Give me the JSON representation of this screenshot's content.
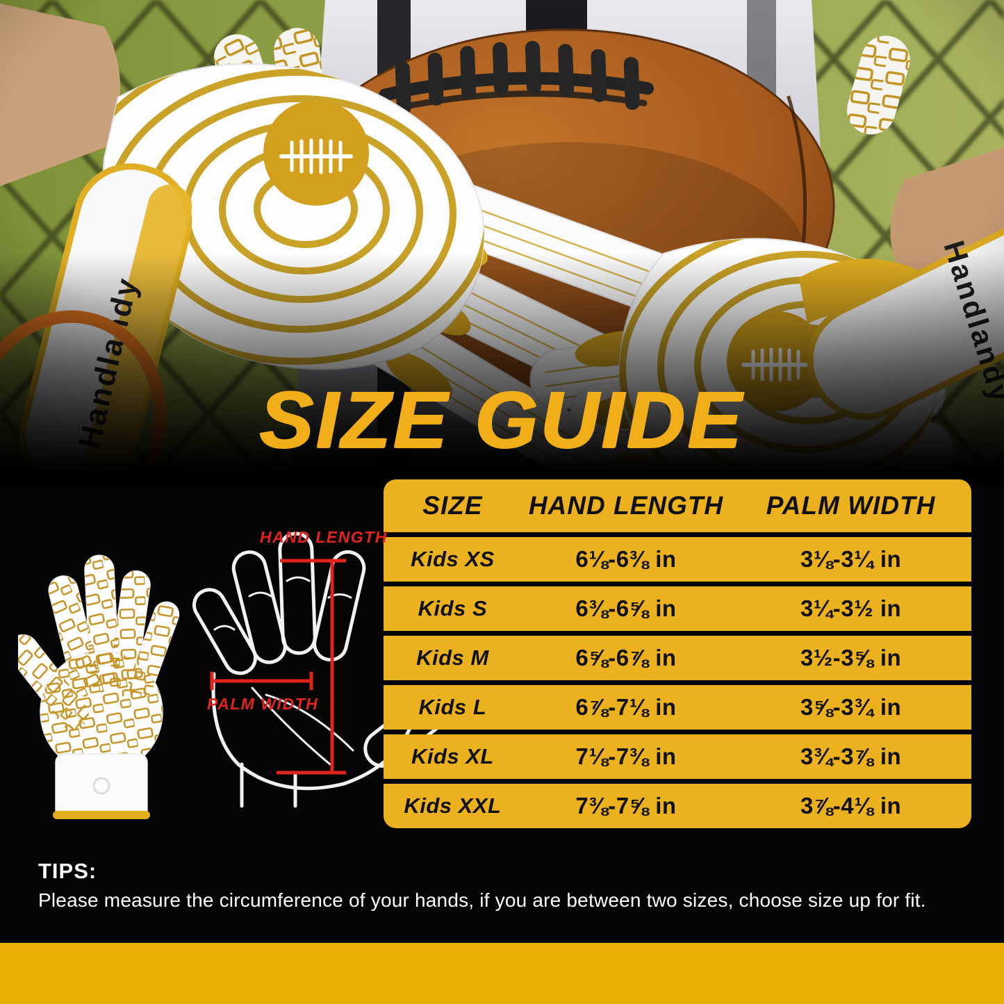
{
  "title": {
    "text": "SIZE GUIDE"
  },
  "photo": {
    "brand": "Handlandy"
  },
  "diagram": {
    "hand_length_label": "HAND LENGTH",
    "palm_width_label": "PALM WIDTH"
  },
  "size_table": {
    "headers": [
      "SIZE",
      "HAND LENGTH",
      "PALM WIDTH"
    ],
    "rows": [
      {
        "size": "Kids XS",
        "hand_length": "6⅛-6⅜ in",
        "palm_width": "3⅛-3¼ in"
      },
      {
        "size": "Kids S",
        "hand_length": "6⅜-6⅝ in",
        "palm_width": "3¼-3½ in"
      },
      {
        "size": "Kids M",
        "hand_length": "6⅝-6⅞ in",
        "palm_width": "3½-3⅝ in"
      },
      {
        "size": "Kids L",
        "hand_length": "6⅞-7⅛ in",
        "palm_width": "3⅝-3¾ in"
      },
      {
        "size": "Kids XL",
        "hand_length": "7⅛-7⅜ in",
        "palm_width": "3¾-3⅞ in"
      },
      {
        "size": "Kids XXL",
        "hand_length": "7⅜-7⅝ in",
        "palm_width": "3⅞-4⅛ in"
      }
    ]
  },
  "tips": {
    "heading": "TIPS:",
    "body": "Please measure the circumference of your hands, if you are between two sizes, choose size up for fit."
  },
  "colors": {
    "table_gold": "#ECB11F",
    "title_gold": "#F1AE19",
    "bar_gold": "#E8B103",
    "label_red": "#E3241E"
  }
}
